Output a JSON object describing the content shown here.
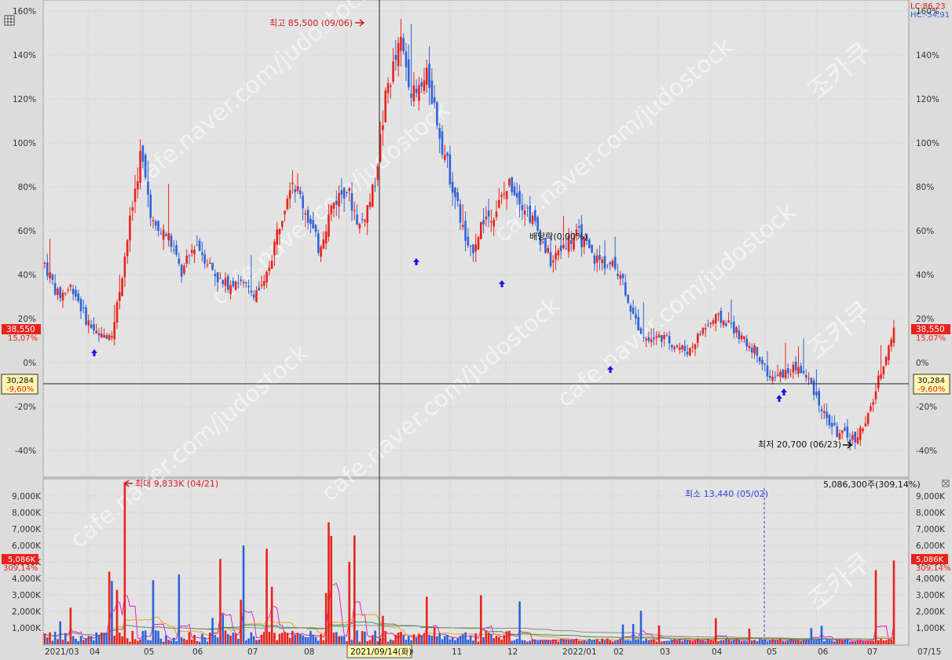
{
  "colors": {
    "up": "#e8231c",
    "down": "#2f62d6",
    "background": "#dcdcdc",
    "grid": "#c9c9c9",
    "axis_text": "#333333",
    "ma_magenta": "#e020c8",
    "ma_orange": "#f0a020",
    "ma_green": "#2e9a3a",
    "ma_gray": "#8a8a8a",
    "watermark": "#ffffff"
  },
  "legend": {
    "lc": "LC:86,23",
    "hc": "HC:-54,91"
  },
  "price_axis": {
    "ticks": [
      "160%",
      "140%",
      "120%",
      "100%",
      "80%",
      "60%",
      "40%",
      "20%",
      "0%",
      "-20%",
      "-40%"
    ],
    "current_price": "38,550",
    "current_change": "15,07%",
    "cursor_price": "30,284",
    "cursor_change": "-9,60%"
  },
  "volume_axis": {
    "ticks": [
      "9,000K",
      "8,000K",
      "7,000K",
      "6,000K",
      "5,000K",
      "4,000K",
      "3,000K",
      "2,000K",
      "1,000K"
    ],
    "current_volume": "5,086K",
    "current_ratio": "309,14%"
  },
  "x_axis": {
    "labels": [
      "2021/03",
      "04",
      "05",
      "06",
      "07",
      "08",
      "09",
      "10",
      "11",
      "12",
      "2022/01",
      "02",
      "03",
      "04",
      "05",
      "06",
      "07",
      "07/15"
    ],
    "cursor_date": "2021/09/14(화)"
  },
  "annotations": {
    "max_price": "최고 85,500 (09/06)",
    "min_price": "최저 20,700 (06/23)",
    "ex_dividend": "배당락(0,00%)",
    "max_volume": "최대 9,833K (04/21)",
    "min_volume": "최소 13,440 (05/02)",
    "last_volume": "5,086,300주(309,14%)"
  },
  "watermark": {
    "text": "cafe.naver.com/judostock",
    "brand": "조카쿠"
  },
  "chart_data": [
    {
      "type": "candlestick",
      "description_unit": "% change vs. base price",
      "period": [
        "2021/03",
        "2022/07/15"
      ],
      "ylim": [
        -50,
        160
      ],
      "yticks": [
        160,
        140,
        120,
        100,
        80,
        60,
        40,
        20,
        0,
        -20,
        -40
      ],
      "points": [
        {
          "date": "2021/03",
          "value": 45
        },
        {
          "date": "2021/03b",
          "value": 30
        },
        {
          "date": "2021/03c",
          "value": 35
        },
        {
          "date": "2021/03d",
          "value": 20
        },
        {
          "date": "2021/04",
          "value": 11
        },
        {
          "date": "2021/04b",
          "value": 15
        },
        {
          "date": "2021/04c",
          "value": 55
        },
        {
          "date": "2021/04d",
          "value": 95
        },
        {
          "date": "2021/04e",
          "value": 60
        },
        {
          "date": "2021/05",
          "value": 58
        },
        {
          "date": "2021/05b",
          "value": 40
        },
        {
          "date": "2021/05c",
          "value": 55
        },
        {
          "date": "2021/05d",
          "value": 45
        },
        {
          "date": "2021/06",
          "value": 35
        },
        {
          "date": "2021/06b",
          "value": 38
        },
        {
          "date": "2021/06c",
          "value": 32
        },
        {
          "date": "2021/06d",
          "value": 34
        },
        {
          "date": "2021/07",
          "value": 60
        },
        {
          "date": "2021/07b",
          "value": 85
        },
        {
          "date": "2021/07c",
          "value": 70
        },
        {
          "date": "2021/07d",
          "value": 52
        },
        {
          "date": "2021/08",
          "value": 72
        },
        {
          "date": "2021/08b",
          "value": 80
        },
        {
          "date": "2021/08c",
          "value": 62
        },
        {
          "date": "2021/08d",
          "value": 78
        },
        {
          "date": "2021/09",
          "value": 125
        },
        {
          "date": "2021/09b",
          "value": 145
        },
        {
          "date": "2021/09c",
          "value": 120
        },
        {
          "date": "2021/09d",
          "value": 130
        },
        {
          "date": "2021/10",
          "value": 100
        },
        {
          "date": "2021/10b",
          "value": 75
        },
        {
          "date": "2021/10c",
          "value": 48
        },
        {
          "date": "2021/10d",
          "value": 65
        },
        {
          "date": "2021/11",
          "value": 70
        },
        {
          "date": "2021/11b",
          "value": 82
        },
        {
          "date": "2021/11c",
          "value": 72
        },
        {
          "date": "2021/11d",
          "value": 60
        },
        {
          "date": "2021/12",
          "value": 45
        },
        {
          "date": "2021/12b",
          "value": 55
        },
        {
          "date": "2021/12c",
          "value": 58
        },
        {
          "date": "2021/12d",
          "value": 48
        },
        {
          "date": "2022/01",
          "value": 45
        },
        {
          "date": "2022/01b",
          "value": 42
        },
        {
          "date": "2022/01c",
          "value": 20
        },
        {
          "date": "2022/02",
          "value": 10
        },
        {
          "date": "2022/02b",
          "value": 12
        },
        {
          "date": "2022/02c",
          "value": 8
        },
        {
          "date": "2022/03",
          "value": 5
        },
        {
          "date": "2022/03b",
          "value": 15
        },
        {
          "date": "2022/03c",
          "value": 20
        },
        {
          "date": "2022/04",
          "value": 18
        },
        {
          "date": "2022/04b",
          "value": 10
        },
        {
          "date": "2022/04c",
          "value": 5
        },
        {
          "date": "2022/05",
          "value": -8
        },
        {
          "date": "2022/05b",
          "value": -5
        },
        {
          "date": "2022/05c",
          "value": -2
        },
        {
          "date": "2022/06",
          "value": -10
        },
        {
          "date": "2022/06b",
          "value": -25
        },
        {
          "date": "2022/06c",
          "value": -33
        },
        {
          "date": "2022/06d",
          "value": -35
        },
        {
          "date": "2022/07",
          "value": -28
        },
        {
          "date": "2022/07b",
          "value": -5
        },
        {
          "date": "2022/07/15",
          "value": 15
        }
      ],
      "marks": {
        "max": {
          "date": "2021/09/06",
          "value": 155,
          "label": "최고 85,500 (09/06)"
        },
        "min": {
          "date": "2022/06/23",
          "value": -38,
          "label": "최저 20,700 (06/23)"
        }
      }
    },
    {
      "type": "bar",
      "description_unit": "volume (K shares)",
      "ylim": [
        0,
        10000
      ],
      "yticks": [
        9000,
        8000,
        7000,
        6000,
        5000,
        4000,
        3000,
        2000,
        1000
      ],
      "max": {
        "date": "2021/04/21",
        "value": 9833
      },
      "min": {
        "date": "2022/05/02",
        "value": 13.44
      },
      "last": {
        "date": "2022/07/15",
        "value": 5086
      }
    }
  ]
}
